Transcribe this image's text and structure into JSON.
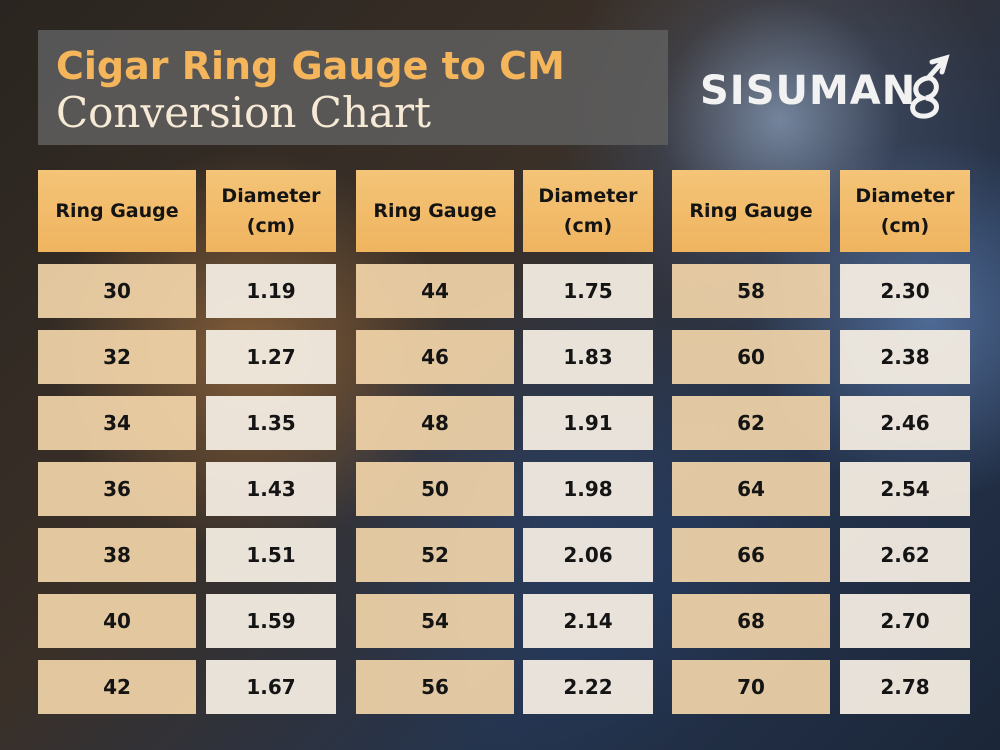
{
  "header": {
    "title_line1": "Cigar Ring Gauge to CM",
    "title_line2": "Conversion Chart",
    "brand": "SISUMAN"
  },
  "table": {
    "groups": [
      {
        "headers": [
          "Ring Gauge",
          "Diameter (cm)"
        ],
        "rows": [
          [
            "30",
            "1.19"
          ],
          [
            "32",
            "1.27"
          ],
          [
            "34",
            "1.35"
          ],
          [
            "36",
            "1.43"
          ],
          [
            "38",
            "1.51"
          ],
          [
            "40",
            "1.59"
          ],
          [
            "42",
            "1.67"
          ]
        ]
      },
      {
        "headers": [
          "Ring Gauge",
          "Diameter (cm)"
        ],
        "rows": [
          [
            "44",
            "1.75"
          ],
          [
            "46",
            "1.83"
          ],
          [
            "48",
            "1.91"
          ],
          [
            "50",
            "1.98"
          ],
          [
            "52",
            "2.06"
          ],
          [
            "54",
            "2.14"
          ],
          [
            "56",
            "2.22"
          ]
        ]
      },
      {
        "headers": [
          "Ring Gauge",
          "Diameter (cm)"
        ],
        "rows": [
          [
            "58",
            "2.30"
          ],
          [
            "60",
            "2.38"
          ],
          [
            "62",
            "2.46"
          ],
          [
            "64",
            "2.54"
          ],
          [
            "66",
            "2.62"
          ],
          [
            "68",
            "2.70"
          ],
          [
            "70",
            "2.78"
          ]
        ]
      }
    ]
  }
}
